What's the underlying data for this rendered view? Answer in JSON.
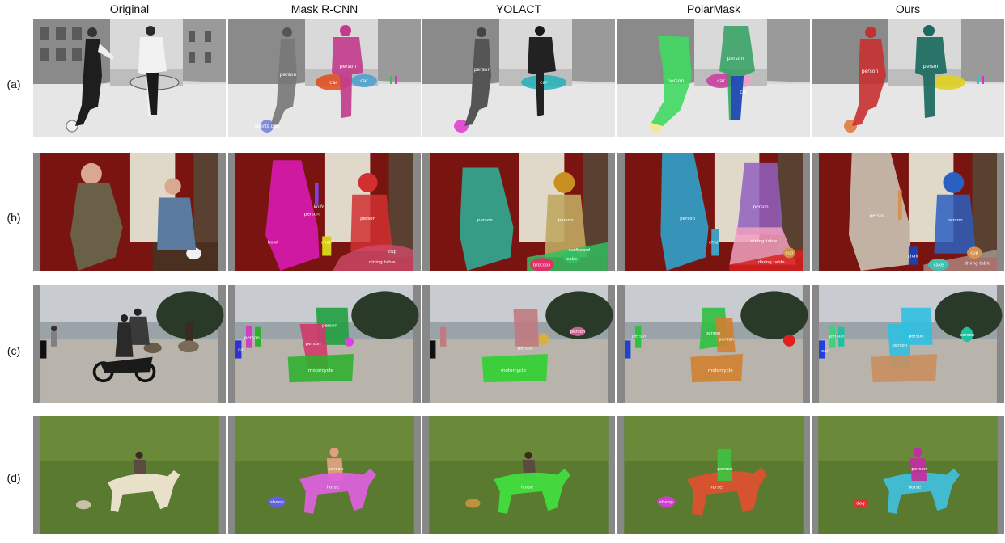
{
  "columns": [
    "Original",
    "Mask R-CNN",
    "YOLACT",
    "PolarMask",
    "Ours"
  ],
  "rows": [
    "(a)",
    "(b)",
    "(c)",
    "(d)"
  ],
  "scene_tags": {
    "a": {
      "mask_rcnn": [
        "person",
        "person",
        "car",
        "car",
        "sports ball"
      ],
      "yolact": [
        "person",
        "car"
      ],
      "polarmask": [
        "person",
        "person",
        "car",
        "car"
      ],
      "ours": [
        "person",
        "person"
      ]
    },
    "b": {
      "mask_rcnn": [
        "person",
        "person",
        "knife",
        "chair",
        "bowl",
        "dining table",
        "cup"
      ],
      "yolact": [
        "person",
        "person",
        "surfboard",
        "broccoli",
        "cake"
      ],
      "polarmask": [
        "person",
        "person",
        "chair",
        "dining table",
        "cup",
        "dining table"
      ],
      "ours": [
        "person",
        "person",
        "chair",
        "cup",
        "cake",
        "dining table"
      ]
    },
    "c": {
      "mask_rcnn": [
        "person",
        "person",
        "person",
        "motorcycle",
        "car"
      ],
      "yolact": [
        "person",
        "person",
        "motorcycle"
      ],
      "polarmask": [
        "person",
        "person",
        "person",
        "motorcycle"
      ],
      "ours": [
        "person",
        "person",
        "person",
        "person",
        "car"
      ]
    },
    "d": {
      "mask_rcnn": [
        "person",
        "horse",
        "sheep"
      ],
      "yolact": [
        "horse"
      ],
      "polarmask": [
        "person",
        "horse",
        "sheep"
      ],
      "ours": [
        "person",
        "horse",
        "dog"
      ]
    }
  },
  "mask_colors": {
    "a": {
      "mask_rcnn": [
        "#c23a8c",
        "#777777",
        "#e04a1a",
        "#4aa0d0",
        "#6f7bd8"
      ],
      "yolact": [
        "#555555",
        "#20b2b8",
        "#e040d0"
      ],
      "polarmask": [
        "#40d860",
        "#30a060",
        "#cc3aa0",
        "#f0e890"
      ],
      "ours": [
        "#c83030",
        "#1a6a60",
        "#e0d020",
        "#e07a40"
      ]
    },
    "b": {
      "mask_rcnn": [
        "#d81ab0",
        "#d03030",
        "#d8d018",
        "#d04a6a",
        "#8040e0"
      ],
      "yolact": [
        "#30a890",
        "#c89020",
        "#30c060",
        "#e0306a",
        "#c0a860"
      ],
      "polarmask": [
        "#30a0c8",
        "#9060c0",
        "#40a0c0",
        "#f0a0c0",
        "#d82020",
        "#d09040"
      ],
      "ours": [
        "#c8c0b0",
        "#2a60c0",
        "#2040b0",
        "#40c0b0",
        "#d89050"
      ]
    },
    "c": {
      "mask_rcnn": [
        "#30b030",
        "#d03a6a",
        "#20a040",
        "#e040e0",
        "#3030d0"
      ],
      "yolact": [
        "#30d030",
        "#c07a80",
        "#d8b040",
        "#d06090"
      ],
      "polarmask": [
        "#30c040",
        "#d08030",
        "#e02020",
        "#2040d0"
      ],
      "ours": [
        "#c89060",
        "#30c0e0",
        "#20c0a0",
        "#2040e0",
        "#40d080"
      ]
    },
    "d": {
      "mask_rcnn": [
        "#e060e0",
        "#e0a080",
        "#6060e0"
      ],
      "yolact": [
        "#40e040",
        "#c09040"
      ],
      "polarmask": [
        "#e05030",
        "#40c040",
        "#d040d0"
      ],
      "ours": [
        "#40c0e0",
        "#c030a0",
        "#e03030"
      ]
    }
  }
}
